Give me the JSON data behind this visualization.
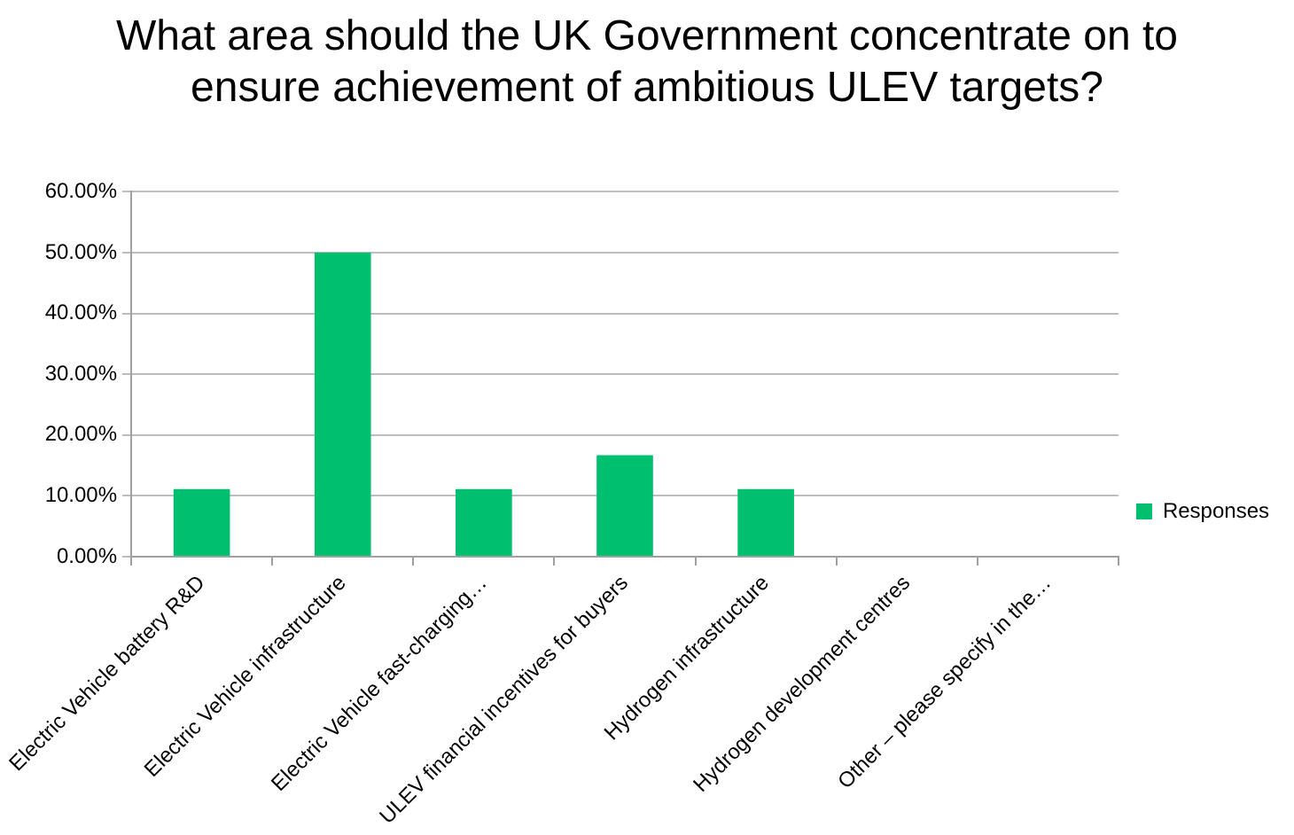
{
  "chart_data": {
    "type": "bar",
    "title": "What area should the UK Government concentrate on to ensure achievement of ambitious ULEV targets?",
    "categories": [
      "Electric Vehicle battery R&D",
      "Electric Vehicle infrastructure",
      "Electric Vehicle fast-charging…",
      "ULEV financial incentives for buyers",
      "Hydrogen infrastructure",
      "Hydrogen development centres",
      "Other – please specify in the…"
    ],
    "series": [
      {
        "name": "Responses",
        "color": "#00c070",
        "values": [
          11.1,
          50,
          11.1,
          16.7,
          11.1,
          0,
          0
        ]
      }
    ],
    "ylim": [
      0,
      60
    ],
    "yticks": [
      {
        "value": 0,
        "label": "0.00%"
      },
      {
        "value": 10,
        "label": "10.00%"
      },
      {
        "value": 20,
        "label": "20.00%"
      },
      {
        "value": 30,
        "label": "30.00%"
      },
      {
        "value": 40,
        "label": "40.00%"
      },
      {
        "value": 50,
        "label": "50.00%"
      },
      {
        "value": 60,
        "label": "60.00%"
      }
    ],
    "grid": "y",
    "legend": "right"
  }
}
